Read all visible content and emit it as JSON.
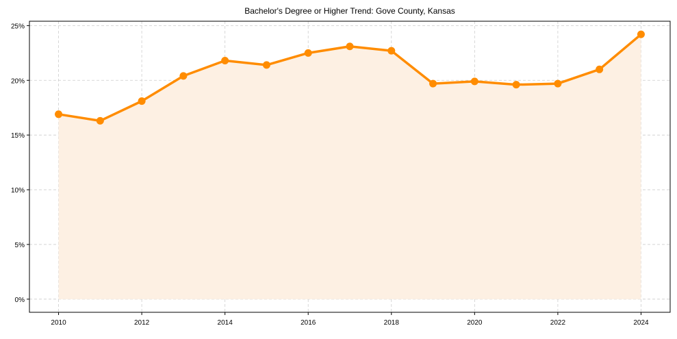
{
  "chart_data": {
    "type": "line",
    "title": "Bachelor's Degree or Higher Trend: Gove County, Kansas",
    "xlabel": "",
    "ylabel": "",
    "x": [
      2010,
      2011,
      2012,
      2013,
      2014,
      2015,
      2016,
      2017,
      2018,
      2019,
      2020,
      2021,
      2022,
      2023,
      2024
    ],
    "series": [
      {
        "name": "Bachelor's Degree or Higher (%)",
        "color": "#ff8c00",
        "fill": "#fdf0e3",
        "values": [
          16.9,
          16.3,
          18.1,
          20.4,
          21.8,
          21.4,
          22.5,
          23.1,
          22.7,
          19.7,
          19.9,
          19.6,
          19.7,
          21.0,
          24.2
        ]
      }
    ],
    "xticks": [
      2010,
      2012,
      2014,
      2016,
      2018,
      2020,
      2022,
      2024
    ],
    "xtick_labels": [
      "2010",
      "2012",
      "2014",
      "2016",
      "2018",
      "2020",
      "2022",
      "2024"
    ],
    "yticks": [
      0,
      5,
      10,
      15,
      20,
      25
    ],
    "ytick_labels": [
      "0%",
      "5%",
      "10%",
      "15%",
      "20%",
      "25%"
    ],
    "xlim": [
      2009.3,
      2024.7
    ],
    "ylim": [
      -1.2,
      25.4
    ],
    "grid": true,
    "legend": "none"
  }
}
